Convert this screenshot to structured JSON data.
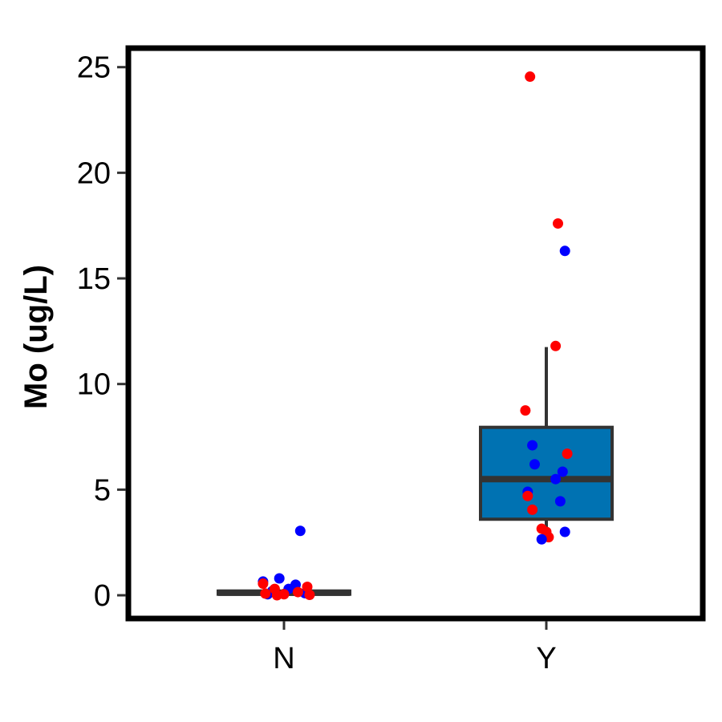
{
  "chart_data": {
    "type": "box",
    "title": "",
    "xlabel": "",
    "ylabel": "Mo (ug/L)",
    "categories": [
      "N",
      "Y"
    ],
    "ylim": [
      -1.1,
      25.9
    ],
    "yticks": [
      0,
      5,
      10,
      15,
      20,
      25
    ],
    "ytick_labels": [
      "0",
      "5",
      "10",
      "15",
      "20",
      "25"
    ],
    "grid": false,
    "legend": "none",
    "colors": {
      "box_fill_Y": "#0072B2",
      "box_fill_N": "#0072B2",
      "box_line": "#333333",
      "point_blue": "#0000ff",
      "point_red": "#ff0000",
      "frame": "#000000"
    },
    "boxes": [
      {
        "category": "N",
        "q1": 0.05,
        "median": 0.12,
        "q3": 0.2,
        "whisker_low": 0.0,
        "whisker_high": 0.3
      },
      {
        "category": "Y",
        "q1": 3.6,
        "median": 5.5,
        "q3": 7.95,
        "whisker_low": 2.7,
        "whisker_high": 11.75
      }
    ],
    "points": [
      {
        "category": "N",
        "jitter": 0.07,
        "value": 3.05,
        "color": "blue"
      },
      {
        "category": "N",
        "jitter": -0.09,
        "value": 0.65,
        "color": "blue"
      },
      {
        "category": "N",
        "jitter": -0.02,
        "value": 0.8,
        "color": "blue"
      },
      {
        "category": "N",
        "jitter": 0.05,
        "value": 0.5,
        "color": "blue"
      },
      {
        "category": "N",
        "jitter": 0.02,
        "value": 0.3,
        "color": "blue"
      },
      {
        "category": "N",
        "jitter": -0.05,
        "value": 0.2,
        "color": "blue"
      },
      {
        "category": "N",
        "jitter": 0.09,
        "value": 0.1,
        "color": "blue"
      },
      {
        "category": "N",
        "jitter": -0.07,
        "value": 0.05,
        "color": "blue"
      },
      {
        "category": "N",
        "jitter": -0.09,
        "value": 0.55,
        "color": "red"
      },
      {
        "category": "N",
        "jitter": 0.1,
        "value": 0.4,
        "color": "red"
      },
      {
        "category": "N",
        "jitter": -0.04,
        "value": 0.3,
        "color": "red"
      },
      {
        "category": "N",
        "jitter": 0.06,
        "value": 0.15,
        "color": "red"
      },
      {
        "category": "N",
        "jitter": -0.08,
        "value": 0.08,
        "color": "red"
      },
      {
        "category": "N",
        "jitter": 0.0,
        "value": 0.05,
        "color": "red"
      },
      {
        "category": "N",
        "jitter": 0.11,
        "value": 0.02,
        "color": "red"
      },
      {
        "category": "N",
        "jitter": -0.03,
        "value": 0.0,
        "color": "red"
      },
      {
        "category": "Y",
        "jitter": -0.07,
        "value": 24.55,
        "color": "red"
      },
      {
        "category": "Y",
        "jitter": 0.05,
        "value": 17.6,
        "color": "red"
      },
      {
        "category": "Y",
        "jitter": 0.08,
        "value": 16.3,
        "color": "blue"
      },
      {
        "category": "Y",
        "jitter": 0.04,
        "value": 11.8,
        "color": "red"
      },
      {
        "category": "Y",
        "jitter": -0.09,
        "value": 8.75,
        "color": "red"
      },
      {
        "category": "Y",
        "jitter": -0.06,
        "value": 7.1,
        "color": "blue"
      },
      {
        "category": "Y",
        "jitter": 0.09,
        "value": 6.7,
        "color": "red"
      },
      {
        "category": "Y",
        "jitter": -0.05,
        "value": 6.2,
        "color": "blue"
      },
      {
        "category": "Y",
        "jitter": 0.07,
        "value": 5.85,
        "color": "blue"
      },
      {
        "category": "Y",
        "jitter": 0.04,
        "value": 5.5,
        "color": "blue"
      },
      {
        "category": "Y",
        "jitter": -0.08,
        "value": 4.9,
        "color": "blue"
      },
      {
        "category": "Y",
        "jitter": -0.08,
        "value": 4.7,
        "color": "red"
      },
      {
        "category": "Y",
        "jitter": 0.06,
        "value": 4.45,
        "color": "blue"
      },
      {
        "category": "Y",
        "jitter": -0.06,
        "value": 4.05,
        "color": "red"
      },
      {
        "category": "Y",
        "jitter": -0.02,
        "value": 3.15,
        "color": "red"
      },
      {
        "category": "Y",
        "jitter": 0.08,
        "value": 3.0,
        "color": "blue"
      },
      {
        "category": "Y",
        "jitter": 0.0,
        "value": 3.0,
        "color": "red"
      },
      {
        "category": "Y",
        "jitter": 0.01,
        "value": 2.75,
        "color": "red"
      },
      {
        "category": "Y",
        "jitter": -0.02,
        "value": 2.65,
        "color": "blue"
      }
    ]
  }
}
